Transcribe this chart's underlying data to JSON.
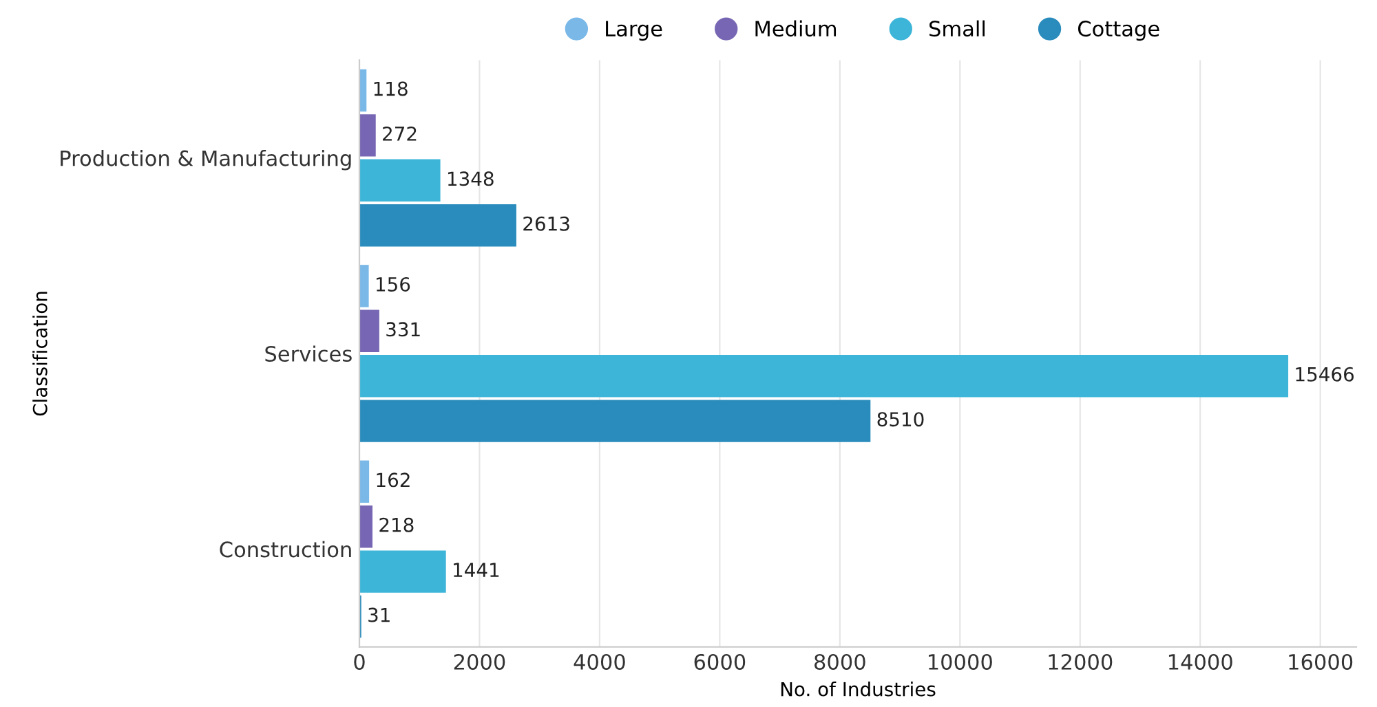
{
  "chart_data": {
    "type": "bar",
    "orientation": "horizontal",
    "xlabel": "No. of Industries",
    "ylabel": "Classification",
    "categories": [
      "Production & Manufacturing",
      "Services",
      "Construction"
    ],
    "series": [
      {
        "name": "Large",
        "color": "#7ab8e8",
        "values": [
          118,
          156,
          162
        ]
      },
      {
        "name": "Medium",
        "color": "#7766b3",
        "values": [
          272,
          331,
          218
        ]
      },
      {
        "name": "Small",
        "color": "#3cb5d8",
        "values": [
          1348,
          15466,
          1441
        ]
      },
      {
        "name": "Cottage",
        "color": "#2a8cbc",
        "values": [
          2613,
          8510,
          31
        ]
      }
    ],
    "xlim": [
      0,
      16600
    ],
    "xticks": [
      0,
      2000,
      4000,
      6000,
      8000,
      10000,
      12000,
      14000,
      16000
    ],
    "grid": "x",
    "legend": "top",
    "data_labels": true
  }
}
